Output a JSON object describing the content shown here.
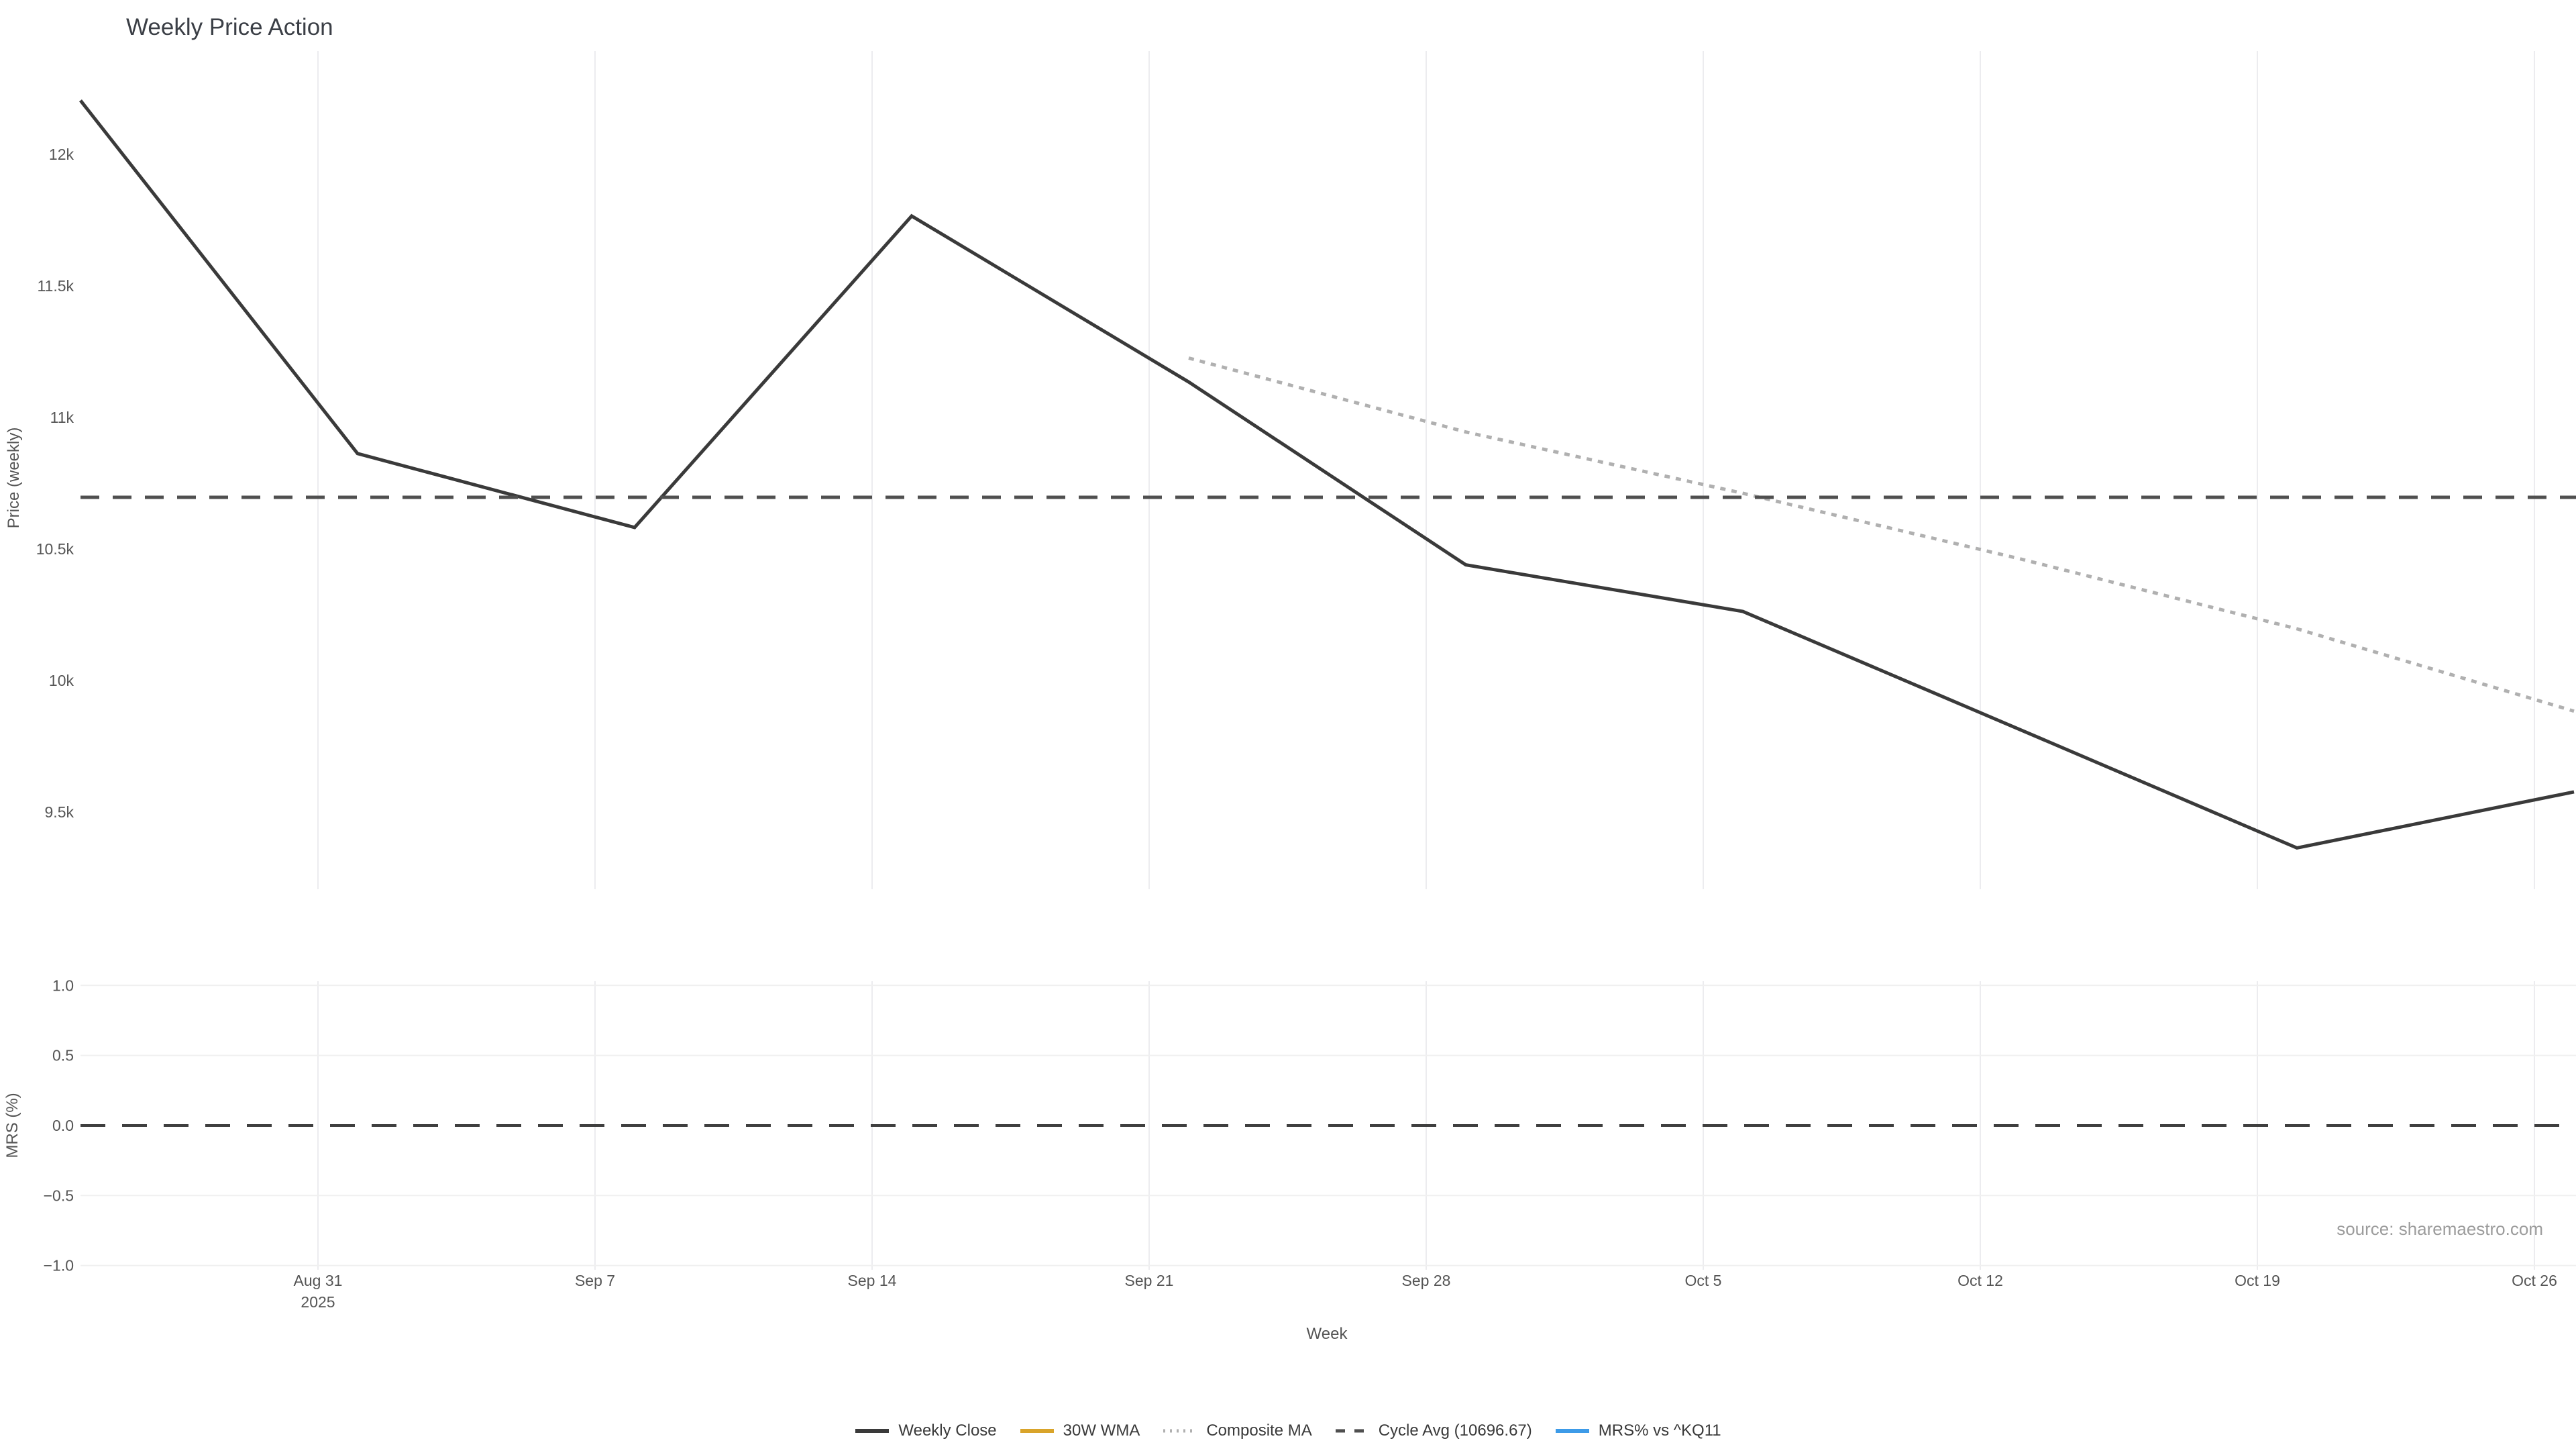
{
  "source": {
    "text": "source: sharemaestro.com"
  },
  "colors": {
    "background": "#ffffff",
    "weekly_close": "#3a3a3a",
    "wma": "#d9a42a",
    "composite_ma": "#b0b0b0",
    "cycle_avg": "#4f4f4f",
    "mrs_line": "#3d9be8",
    "grid_vertical": "#ececef",
    "grid_horizontal": "#f0f0f0",
    "zero_line": "#3f3f3f",
    "tick_text": "#555555",
    "title_text": "#3b3f46",
    "source_text": "#9c9c9c"
  },
  "legend": {
    "items": [
      {
        "label": "Weekly Close",
        "style": "solid",
        "color": "#3a3a3a",
        "width": 6
      },
      {
        "label": "30W WMA",
        "style": "solid",
        "color": "#d9a42a",
        "width": 6
      },
      {
        "label": "Composite MA",
        "style": "dotted",
        "color": "#b0b0b0",
        "width": 5
      },
      {
        "label": "Cycle Avg (10696.67)",
        "style": "dashed",
        "color": "#4f4f4f",
        "width": 5
      },
      {
        "label": "MRS% vs ^KQ11",
        "style": "solid",
        "color": "#3d9be8",
        "width": 6
      }
    ]
  },
  "chart_data": {
    "type": "line",
    "title": "Weekly Price Action",
    "xlabel": "Week",
    "x": [
      "Aug 25",
      "Sep 1",
      "Sep 8",
      "Sep 15",
      "Sep 22",
      "Sep 29",
      "Oct 6",
      "Oct 13",
      "Oct 20",
      "Oct 27"
    ],
    "x_gridline_ticks": [
      {
        "label": "Aug 31",
        "sub": "2025"
      },
      {
        "label": "Sep 7"
      },
      {
        "label": "Sep 14"
      },
      {
        "label": "Sep 21"
      },
      {
        "label": "Sep 28"
      },
      {
        "label": "Oct 5"
      },
      {
        "label": "Oct 12"
      },
      {
        "label": "Oct 19"
      },
      {
        "label": "Oct 26"
      }
    ],
    "legend_position": "bottom-center",
    "grid": {
      "vertical": true,
      "horizontal_price_panel": false,
      "horizontal_mrs_panel": true
    },
    "subplots": [
      {
        "name": "price",
        "ylabel": "Price (weekly)",
        "ylim": [
          9207,
          12393
        ],
        "yticks": [
          {
            "label": "12k",
            "value": 12000
          },
          {
            "label": "11.5k",
            "value": 11500
          },
          {
            "label": "11k",
            "value": 11000
          },
          {
            "label": "10.5k",
            "value": 10500
          },
          {
            "label": "10k",
            "value": 10000
          },
          {
            "label": "9.5k",
            "value": 9500
          }
        ],
        "series": [
          {
            "name": "Weekly Close",
            "style": "solid",
            "color": "#3a3a3a",
            "line_width": 5,
            "start_index": 0,
            "values": [
              12205,
              10863,
              10582,
              11766,
              11135,
              10440,
              10263,
              9814,
              9364,
              9577
            ]
          },
          {
            "name": "30W WMA",
            "style": "solid",
            "color": "#d9a42a",
            "line_width": 5,
            "start_index": 0,
            "values": []
          },
          {
            "name": "Composite MA",
            "style": "dotted",
            "color": "#b0b0b0",
            "line_width": 5,
            "start_index": 4,
            "values": [
              11226,
              10945,
              10712,
              10463,
              10197,
              9884
            ]
          },
          {
            "name": "Cycle Avg",
            "style": "dashed",
            "color": "#4f4f4f",
            "line_width": 5,
            "constant": 10696.67
          }
        ]
      },
      {
        "name": "mrs",
        "ylabel": "MRS (%)",
        "ylim": [
          -1.03,
          1.03
        ],
        "yticks": [
          {
            "label": "1.0",
            "value": 1.0
          },
          {
            "label": "0.5",
            "value": 0.5
          },
          {
            "label": "0.0",
            "value": 0.0
          },
          {
            "label": "−0.5",
            "value": -0.5
          },
          {
            "label": "−1.0",
            "value": -1.0
          }
        ],
        "series": [
          {
            "name": "MRS% vs ^KQ11",
            "style": "solid",
            "color": "#3d9be8",
            "line_width": 5,
            "start_index": 0,
            "values": []
          },
          {
            "name": "Zero line",
            "style": "dashed",
            "color": "#3f3f3f",
            "line_width": 4,
            "constant": 0
          }
        ]
      }
    ]
  }
}
